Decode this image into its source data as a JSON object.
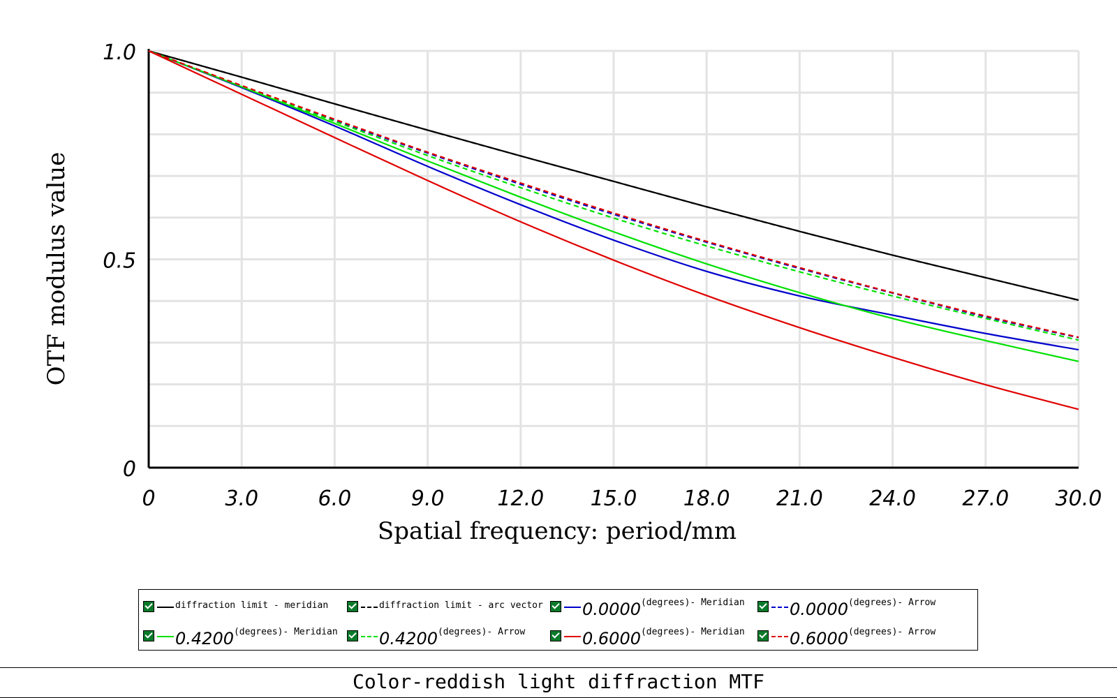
{
  "chart_data": {
    "type": "line",
    "title": "Color-reddish light diffraction MTF",
    "xlabel": "Spatial frequency: period/mm",
    "ylabel": "OTF modulus value",
    "xlim": [
      0,
      30
    ],
    "ylim": [
      0,
      1
    ],
    "grid": true,
    "x_ticks": [
      "0",
      "3.0",
      "6.0",
      "9.0",
      "12.0",
      "15.0",
      "18.0",
      "21.0",
      "24.0",
      "27.0",
      "30.0"
    ],
    "y_ticks": [
      "0",
      "0.5",
      "1.0"
    ],
    "x": [
      0,
      3,
      6,
      9,
      12,
      15,
      18,
      21,
      24,
      27,
      30
    ],
    "series": [
      {
        "name": "diffraction limit - meridian",
        "color": "#000000",
        "dash": "solid",
        "values": [
          1.0,
          0.937,
          0.873,
          0.81,
          0.748,
          0.687,
          0.626,
          0.567,
          0.51,
          0.456,
          0.402
        ]
      },
      {
        "name": "diffraction limit - arc vector",
        "color": "#000000",
        "dash": "dashed",
        "values": [
          1.0,
          0.937,
          0.873,
          0.81,
          0.748,
          0.687,
          0.626,
          0.567,
          0.51,
          0.456,
          0.402
        ]
      },
      {
        "name": "0.0000 (degrees)- Meridian",
        "color": "#0000cc",
        "dash": "solid",
        "values": [
          1.0,
          0.912,
          0.82,
          0.723,
          0.631,
          0.546,
          0.471,
          0.412,
          0.366,
          0.322,
          0.283
        ]
      },
      {
        "name": "0.0000 (degrees)- Arrow",
        "color": "#0000cc",
        "dash": "dashed",
        "values": [
          1.0,
          0.916,
          0.834,
          0.755,
          0.68,
          0.608,
          0.541,
          0.478,
          0.419,
          0.362,
          0.312
        ]
      },
      {
        "name": "0.4200 (degrees)- Meridian",
        "color": "#00e000",
        "dash": "solid",
        "values": [
          1.0,
          0.914,
          0.826,
          0.736,
          0.649,
          0.566,
          0.489,
          0.42,
          0.358,
          0.305,
          0.255
        ]
      },
      {
        "name": "0.4200 (degrees)- Arrow",
        "color": "#00e000",
        "dash": "dashed",
        "values": [
          1.0,
          0.915,
          0.831,
          0.749,
          0.672,
          0.599,
          0.532,
          0.47,
          0.412,
          0.358,
          0.306
        ]
      },
      {
        "name": "0.6000 (degrees)- Meridian",
        "color": "#e00000",
        "dash": "solid",
        "values": [
          1.0,
          0.896,
          0.792,
          0.689,
          0.59,
          0.498,
          0.413,
          0.336,
          0.265,
          0.199,
          0.14
        ]
      },
      {
        "name": "0.6000 (degrees)- Arrow",
        "color": "#e00000",
        "dash": "dashed",
        "values": [
          1.0,
          0.917,
          0.836,
          0.757,
          0.683,
          0.611,
          0.543,
          0.48,
          0.42,
          0.364,
          0.313
        ]
      }
    ]
  },
  "legend": {
    "items": [
      {
        "num": "",
        "text": "diffraction limit - meridian"
      },
      {
        "num": "",
        "text": "diffraction limit - arc vector"
      },
      {
        "num": "0.0000",
        "text": "(degrees)- Meridian"
      },
      {
        "num": "0.0000",
        "text": "(degrees)- Arrow"
      },
      {
        "num": "0.4200",
        "text": "(degrees)- Meridian"
      },
      {
        "num": "0.4200",
        "text": " (degrees)- Arrow"
      },
      {
        "num": "0.6000",
        "text": "(degrees)- Meridian"
      },
      {
        "num": "0.6000",
        "text": "(degrees)- Arrow"
      }
    ]
  }
}
